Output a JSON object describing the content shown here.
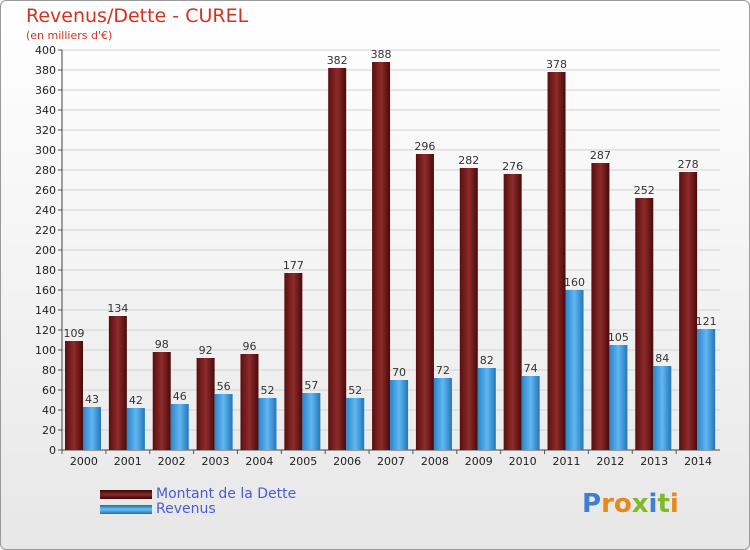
{
  "title": "Revenus/Dette - CUREL",
  "subtitle": "(en milliers d'€)",
  "brand": "Proxiti",
  "colors": {
    "debt": "#7a1c1c",
    "revenue": "#3f9ee0",
    "title": "#d4321f",
    "legend_text": "#4b5cd6"
  },
  "legend": [
    {
      "label": "Montant de la Dette",
      "color": "#6b1414"
    },
    {
      "label": "Revenus",
      "color": "#3f9ee0"
    }
  ],
  "chart_data": {
    "type": "bar",
    "categories": [
      "2000",
      "2001",
      "2002",
      "2003",
      "2004",
      "2005",
      "2006",
      "2007",
      "2008",
      "2009",
      "2010",
      "2011",
      "2012",
      "2013",
      "2014"
    ],
    "series": [
      {
        "name": "Montant de la Dette",
        "values": [
          109,
          134,
          98,
          92,
          96,
          177,
          382,
          388,
          296,
          282,
          276,
          378,
          287,
          252,
          278
        ]
      },
      {
        "name": "Revenus",
        "values": [
          43,
          42,
          46,
          56,
          52,
          57,
          52,
          70,
          72,
          82,
          74,
          160,
          105,
          84,
          121
        ]
      }
    ],
    "ylim": [
      0,
      400
    ],
    "yticks": [
      0,
      20,
      40,
      60,
      80,
      100,
      120,
      140,
      160,
      180,
      200,
      220,
      240,
      260,
      280,
      300,
      320,
      340,
      360,
      380,
      400
    ],
    "grid": true,
    "legend_position": "bottom-left"
  }
}
